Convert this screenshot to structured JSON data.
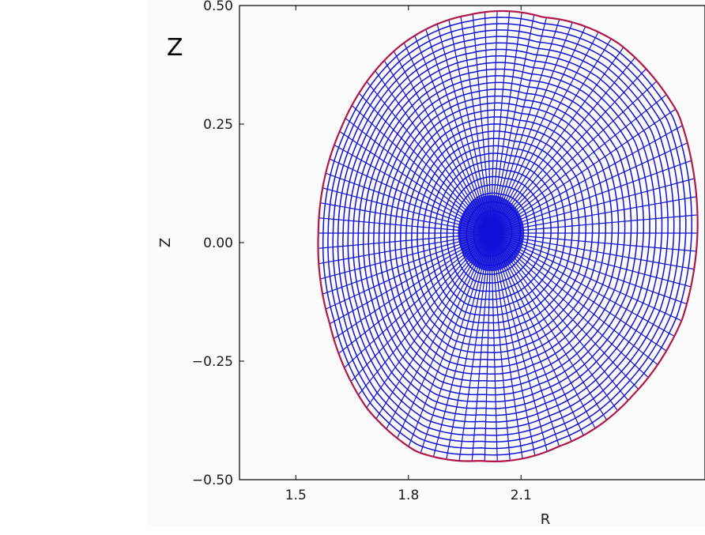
{
  "corner_label": "Z",
  "chart_data": {
    "type": "line",
    "title": "",
    "xlabel": "R",
    "ylabel": "Z",
    "xlim": [
      1.35,
      2.59
    ],
    "ylim": [
      -0.5,
      0.5
    ],
    "xticks": [
      1.5,
      1.8,
      2.1
    ],
    "xtick_labels": [
      "1.5",
      "1.8",
      "2.1"
    ],
    "yticks": [
      0.5,
      0.25,
      0.0,
      -0.25,
      -0.5
    ],
    "ytick_labels": [
      "0.50",
      "0.25",
      "0.00",
      "−0.25",
      "−0.50"
    ],
    "grid": false,
    "legend": "none",
    "mesh": {
      "magnetic_axis": [
        2.02,
        0.02
      ],
      "radial_surfaces": 30,
      "poloidal_lines": 90
    },
    "series": [
      {
        "values": [
          {
            "R": 2.57,
            "Z": 0.02
          },
          {
            "R": 2.52,
            "Z": 0.27
          },
          {
            "R": 2.36,
            "Z": 0.42
          },
          {
            "R": 2.16,
            "Z": 0.475
          },
          {
            "R": 1.96,
            "Z": 0.48
          },
          {
            "R": 1.77,
            "Z": 0.41
          },
          {
            "R": 1.62,
            "Z": 0.24
          },
          {
            "R": 1.56,
            "Z": 0.02
          },
          {
            "R": 1.59,
            "Z": -0.17
          },
          {
            "R": 1.69,
            "Z": -0.35
          },
          {
            "R": 1.82,
            "Z": -0.44
          },
          {
            "R": 1.99,
            "Z": -0.46
          },
          {
            "R": 2.2,
            "Z": -0.43
          },
          {
            "R": 2.4,
            "Z": -0.32
          },
          {
            "R": 2.53,
            "Z": -0.16
          }
        ]
      }
    ],
    "colors": {
      "mesh": "#1010d8",
      "boundary": "#b0174a",
      "frame": "#000000",
      "background": "#fbfbfb"
    }
  }
}
